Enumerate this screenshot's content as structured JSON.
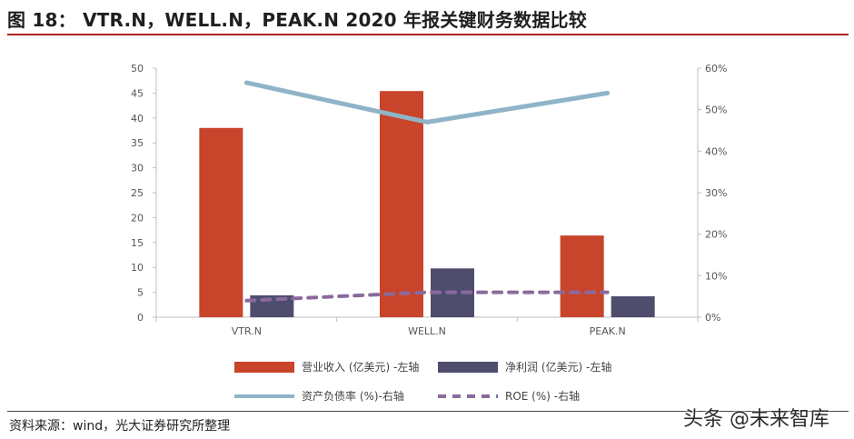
{
  "header": {
    "title": "图 18： VTR.N，WELL.N，PEAK.N 2020 年报关键财务数据比较"
  },
  "footer": {
    "source": "资料来源：wind，光大证券研究所整理",
    "watermark": "头条 @未来智库"
  },
  "colors": {
    "revenue": "#c8442a",
    "net_profit": "#4f4d6e",
    "debt_ratio": "#8fb4c8",
    "roe": "#8a6a9e"
  },
  "chart_data": {
    "type": "bar",
    "categories": [
      "VTR.N",
      "WELL.N",
      "PEAK.N"
    ],
    "y_left": {
      "min": 0,
      "max": 50,
      "step": 5,
      "ticks": [
        "0",
        "5",
        "10",
        "15",
        "20",
        "25",
        "30",
        "35",
        "40",
        "45",
        "50"
      ]
    },
    "y_right": {
      "min": 0,
      "max": 60,
      "step": 10,
      "ticks": [
        "0%",
        "10%",
        "20%",
        "30%",
        "40%",
        "50%",
        "60%"
      ]
    },
    "series": [
      {
        "name": "营业收入 (亿美元) -左轴",
        "type": "bar",
        "axis": "left",
        "values": [
          38.0,
          45.4,
          16.4
        ]
      },
      {
        "name": "净利润 (亿美元) -左轴",
        "type": "bar",
        "axis": "left",
        "values": [
          4.4,
          9.8,
          4.2
        ]
      },
      {
        "name": "资产负债率 (%)-右轴",
        "type": "line",
        "axis": "right",
        "values": [
          56.5,
          47.0,
          54.0
        ]
      },
      {
        "name": "ROE (%) -右轴",
        "type": "line",
        "dashed": true,
        "axis": "right",
        "values": [
          4.0,
          6.0,
          6.0
        ]
      }
    ],
    "legend_position": "bottom",
    "grid": false
  }
}
